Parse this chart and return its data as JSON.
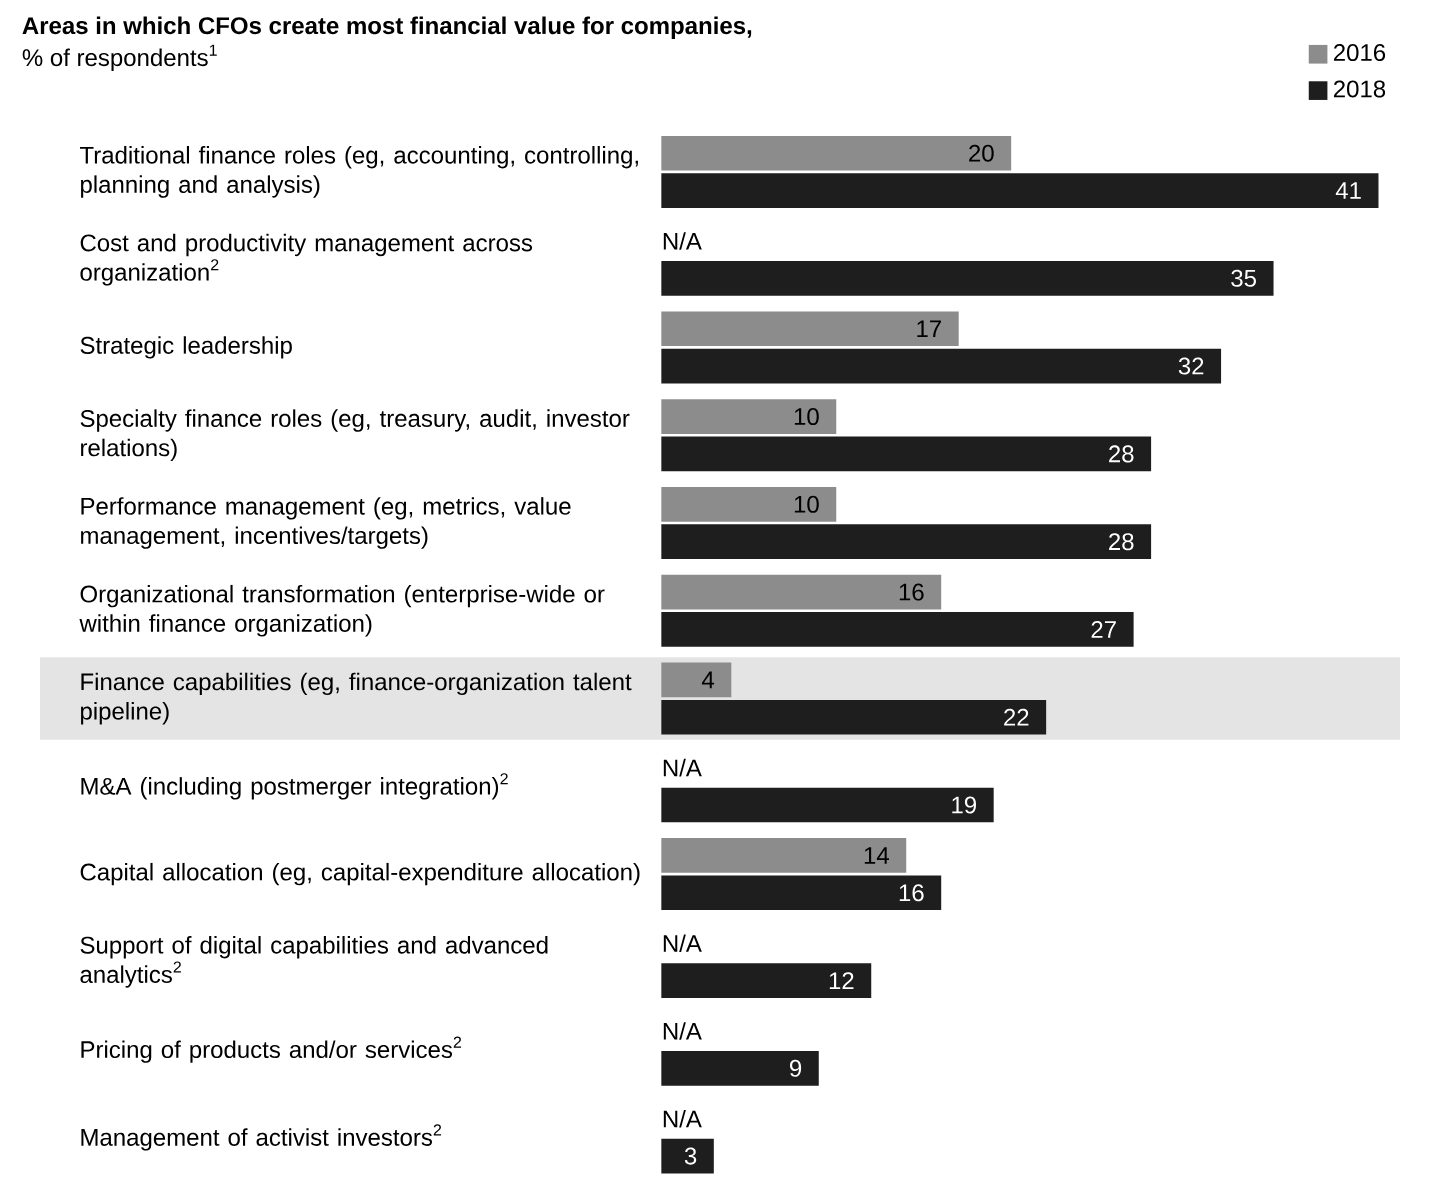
{
  "chart_data": {
    "type": "bar",
    "orientation": "horizontal",
    "title": "Areas in which CFOs create most financial value for companies,",
    "subtitle": "% of respondents$^{1}$",
    "categories": [
      "Traditional finance roles (eg, accounting, controlling, planning and analysis)",
      "Cost and productivity management across organization$^{2}$",
      "Strategic leadership",
      "Specialty finance roles (eg, treasury, audit, investor relations)",
      "Performance management (eg, metrics, value management, incentives/targets)",
      "Organizational transformation (enterprise-wide or within finance organization)",
      "Finance capabilities (eg, finance-organization talent pipeline)",
      "M&A (including postmerger integration)$^{2}$",
      "Capital allocation (eg, capital-expenditure allocation)",
      "Support of digital capabilities and advanced analytics$^{2}$",
      "Pricing of products and/or services$^{2}$",
      "Management of activist investors$^{2}$"
    ],
    "series": [
      {
        "name": "2016",
        "color": "#8c8c8c",
        "values": [
          20,
          null,
          17,
          10,
          10,
          16,
          4,
          null,
          14,
          null,
          null,
          null
        ],
        "value_labels": [
          "20",
          "N/A",
          "17",
          "10",
          "10",
          "16",
          "4",
          "N/A",
          "14",
          "N/A",
          "N/A",
          "N/A"
        ]
      },
      {
        "name": "2018",
        "color": "#1e1e1e",
        "values": [
          41,
          35,
          32,
          28,
          28,
          27,
          22,
          19,
          16,
          12,
          9,
          3
        ],
        "value_labels": [
          "41",
          "35",
          "32",
          "28",
          "28",
          "27",
          "22",
          "19",
          "16",
          "12",
          "9",
          "3"
        ]
      }
    ],
    "bands": [
      {
        "axis": "y",
        "from": "Finance capabilities (eg, finance-organization talent pipeline)",
        "to": "Finance capabilities (eg, finance-organization talent pipeline)",
        "color": "#e4e4e4"
      }
    ],
    "legend": "top right",
    "tick_labels": "y"
  }
}
